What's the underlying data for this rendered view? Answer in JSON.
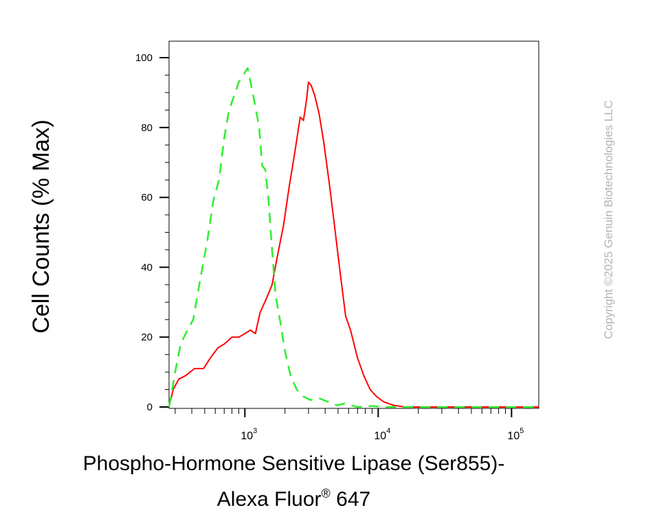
{
  "chart_data": {
    "type": "line",
    "title": "",
    "xlabel_line1": "Phospho-Hormone Sensitive Lipase (Ser855)-",
    "xlabel_line2_main": "Alexa Fluor",
    "xlabel_line2_sup": "®",
    "xlabel_line2_end": " 647",
    "ylabel": "Cell Counts (% Max)",
    "x_scale": "log",
    "xlim": [
      270,
      160000
    ],
    "ylim": [
      0,
      100
    ],
    "x_ticks": [
      {
        "value": 1000,
        "base": "10",
        "exp": "3"
      },
      {
        "value": 10000,
        "base": "10",
        "exp": "4"
      },
      {
        "value": 100000,
        "base": "10",
        "exp": "5"
      }
    ],
    "y_ticks": [
      "0",
      "20",
      "40",
      "60",
      "80",
      "100"
    ],
    "series": [
      {
        "color": "#ff0000",
        "dash": "solid",
        "points": [
          [
            270,
            0
          ],
          [
            290,
            5
          ],
          [
            320,
            8
          ],
          [
            360,
            9
          ],
          [
            420,
            11
          ],
          [
            490,
            11
          ],
          [
            550,
            14
          ],
          [
            630,
            17
          ],
          [
            700,
            18
          ],
          [
            800,
            20
          ],
          [
            900,
            20
          ],
          [
            1000,
            21
          ],
          [
            1100,
            22
          ],
          [
            1200,
            21
          ],
          [
            1300,
            27
          ],
          [
            1450,
            31
          ],
          [
            1600,
            35
          ],
          [
            1750,
            43
          ],
          [
            1950,
            52
          ],
          [
            2150,
            63
          ],
          [
            2350,
            72
          ],
          [
            2600,
            83
          ],
          [
            2750,
            82
          ],
          [
            2900,
            88
          ],
          [
            3000,
            93
          ],
          [
            3150,
            92
          ],
          [
            3350,
            89
          ],
          [
            3600,
            84
          ],
          [
            3900,
            76
          ],
          [
            4300,
            64
          ],
          [
            4700,
            52
          ],
          [
            5200,
            38
          ],
          [
            5700,
            26
          ],
          [
            6200,
            22
          ],
          [
            7000,
            14
          ],
          [
            7800,
            9
          ],
          [
            8700,
            5
          ],
          [
            9700,
            3
          ],
          [
            11000,
            1.5
          ],
          [
            13000,
            0.5
          ],
          [
            16000,
            0
          ],
          [
            160000,
            0
          ]
        ]
      },
      {
        "color": "#33ee33",
        "dash": "dashed",
        "points": [
          [
            270,
            0
          ],
          [
            285,
            5
          ],
          [
            300,
            10
          ],
          [
            330,
            18
          ],
          [
            370,
            22
          ],
          [
            410,
            25
          ],
          [
            460,
            36
          ],
          [
            520,
            47
          ],
          [
            580,
            59
          ],
          [
            640,
            65
          ],
          [
            700,
            77
          ],
          [
            760,
            85
          ],
          [
            830,
            89
          ],
          [
            900,
            93
          ],
          [
            970,
            95
          ],
          [
            1050,
            97
          ],
          [
            1130,
            91
          ],
          [
            1200,
            86
          ],
          [
            1280,
            80
          ],
          [
            1350,
            69
          ],
          [
            1420,
            68
          ],
          [
            1500,
            60
          ],
          [
            1600,
            45
          ],
          [
            1700,
            32
          ],
          [
            1850,
            24
          ],
          [
            2000,
            16
          ],
          [
            2200,
            9
          ],
          [
            2450,
            5
          ],
          [
            2750,
            3
          ],
          [
            3100,
            2
          ],
          [
            3600,
            2.5
          ],
          [
            4200,
            1.5
          ],
          [
            4900,
            0.5
          ],
          [
            5600,
            1
          ],
          [
            6200,
            0.5
          ],
          [
            7000,
            0
          ],
          [
            9000,
            0.3
          ],
          [
            11000,
            0
          ],
          [
            160000,
            0
          ]
        ]
      }
    ]
  },
  "watermark": "Copyright ©2025 Genuin Biotechnologies LLC"
}
